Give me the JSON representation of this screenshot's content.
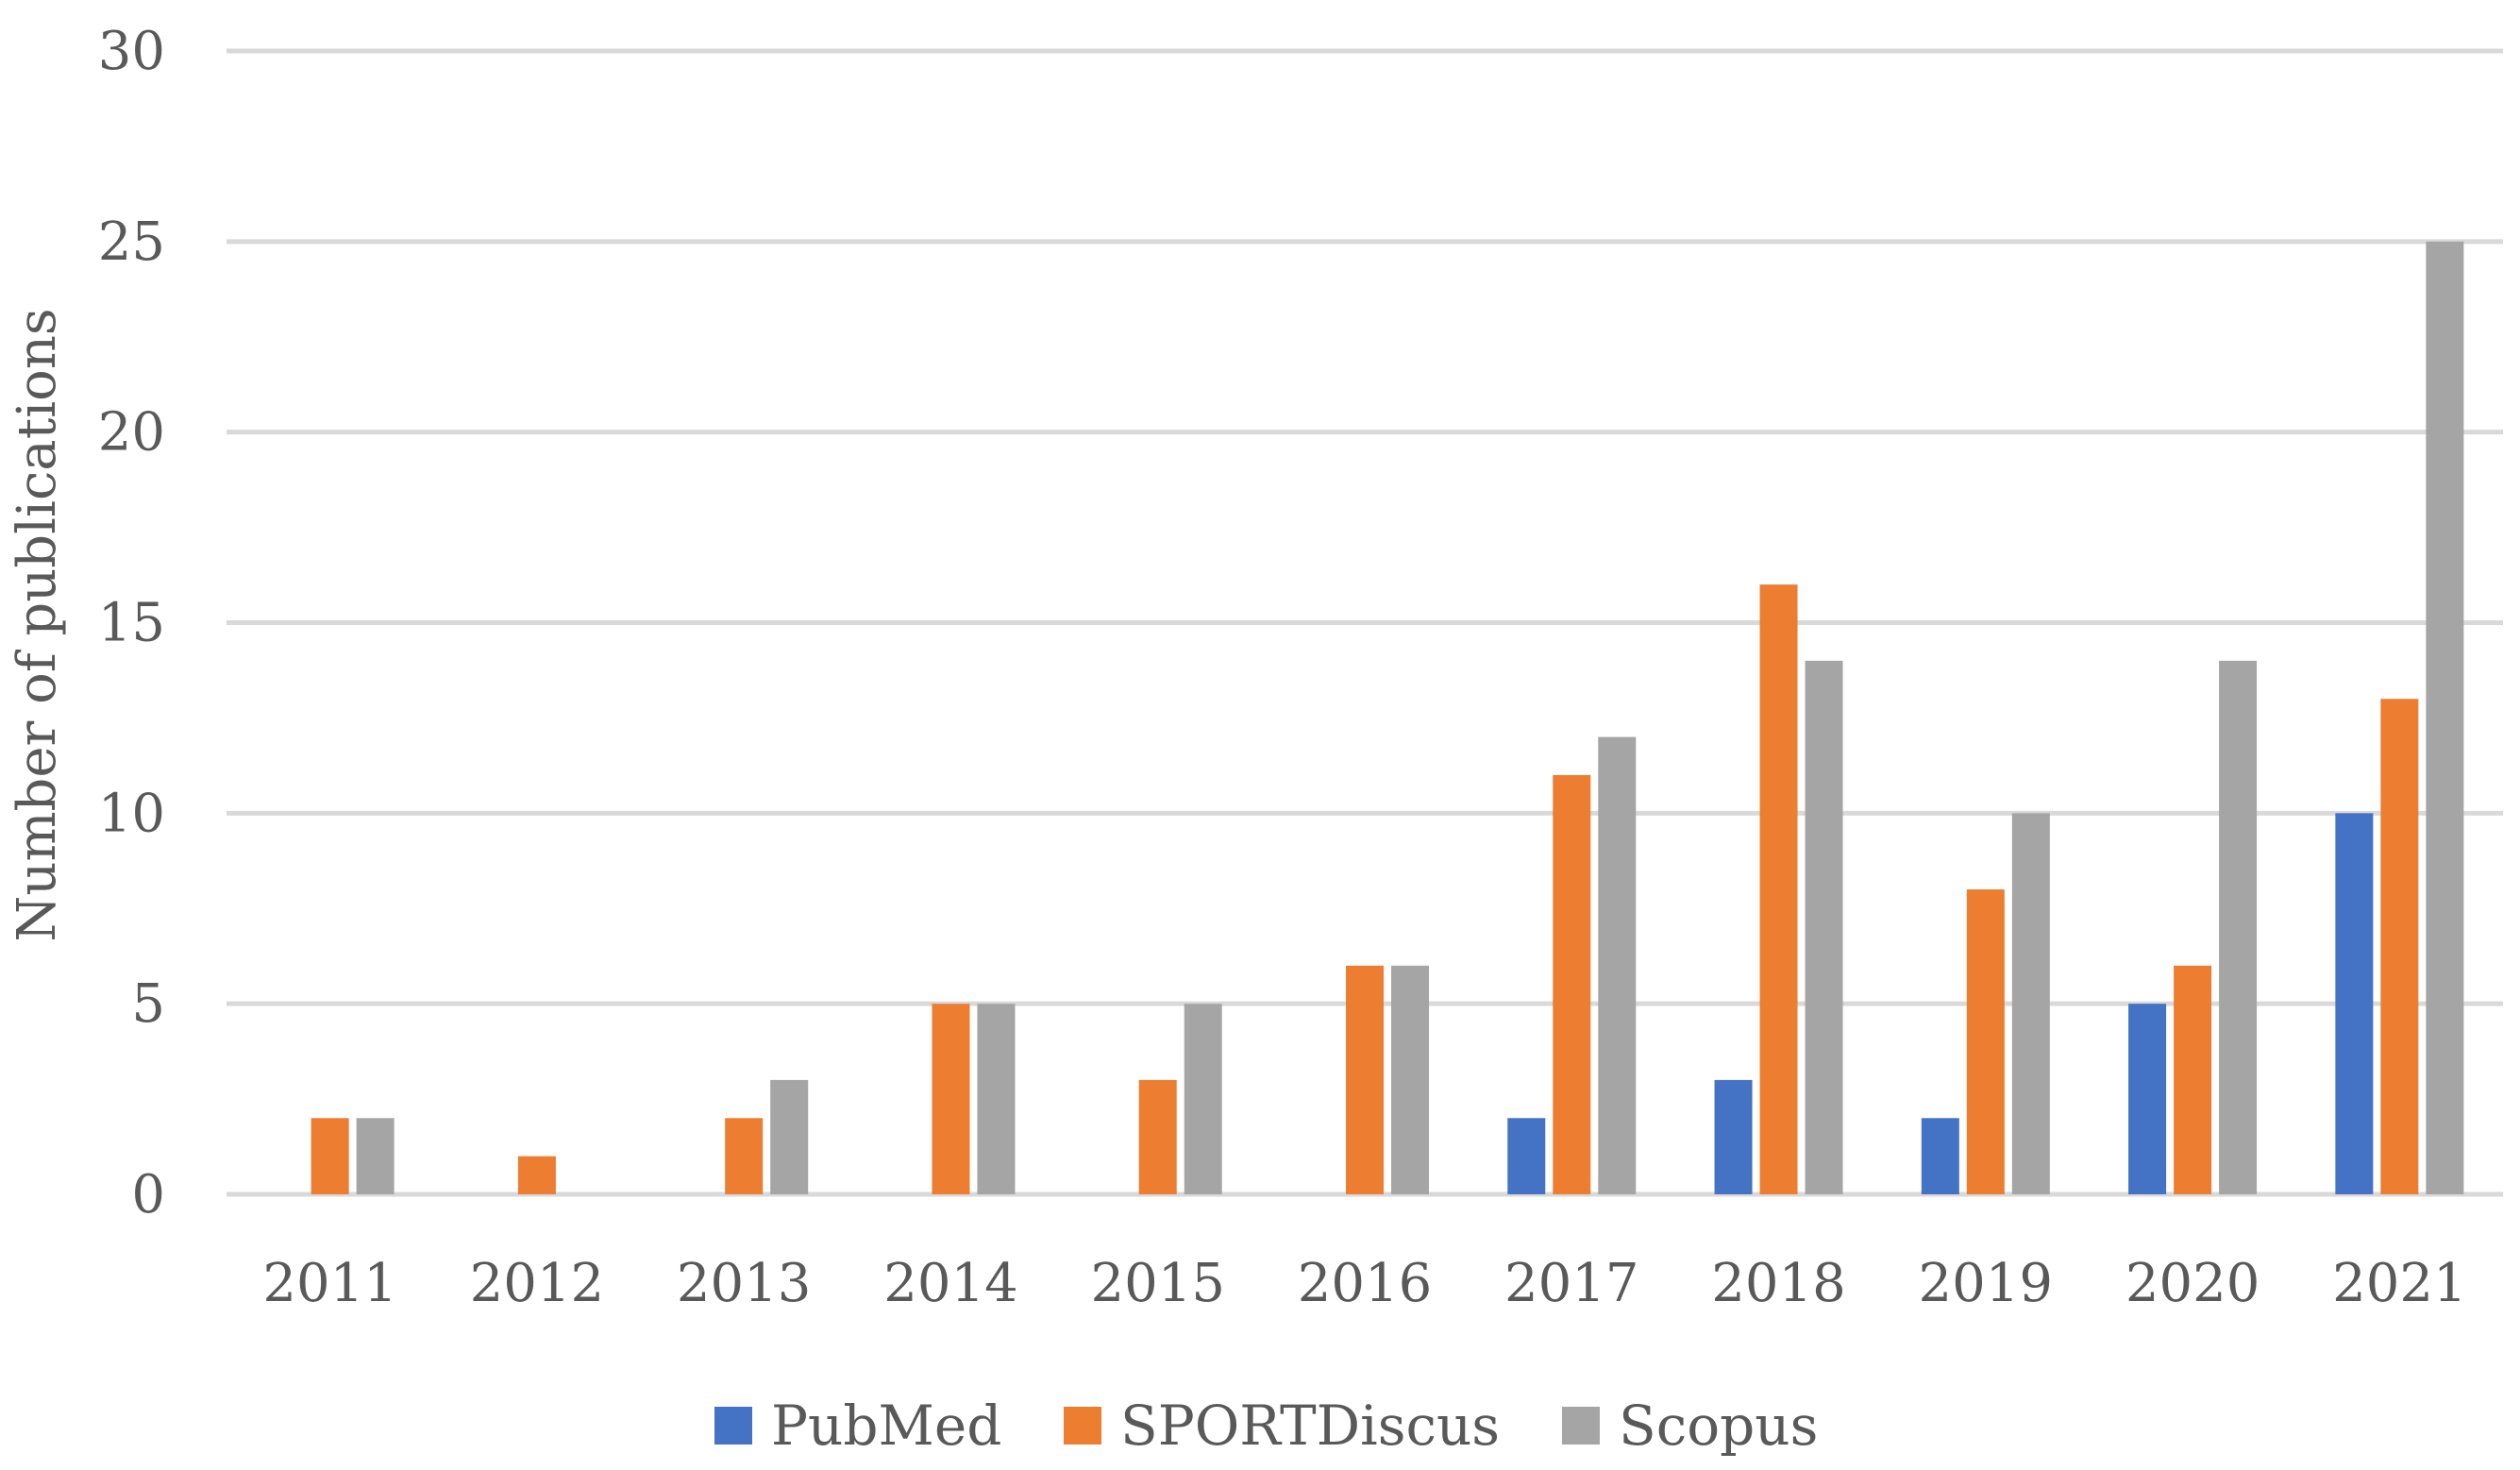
{
  "chart_data": {
    "type": "bar",
    "title": "",
    "xlabel": "",
    "ylabel": "Number of publications",
    "ylim": [
      0,
      30
    ],
    "yticks": [
      0,
      5,
      10,
      15,
      20,
      25,
      30
    ],
    "grid": true,
    "legend_position": "bottom-center",
    "categories": [
      "2011",
      "2012",
      "2013",
      "2014",
      "2015",
      "2016",
      "2017",
      "2018",
      "2019",
      "2020",
      "2021"
    ],
    "series": [
      {
        "name": "PubMed",
        "color": "#4472C4",
        "values": [
          0,
          0,
          0,
          0,
          0,
          0,
          2,
          3,
          2,
          5,
          10
        ]
      },
      {
        "name": "SPORTDiscus",
        "color": "#ED7D31",
        "values": [
          2,
          1,
          2,
          5,
          3,
          6,
          11,
          16,
          8,
          6,
          13
        ]
      },
      {
        "name": "Scopus",
        "color": "#A5A5A5",
        "values": [
          2,
          0,
          3,
          5,
          5,
          6,
          12,
          14,
          10,
          14,
          25
        ]
      }
    ]
  }
}
